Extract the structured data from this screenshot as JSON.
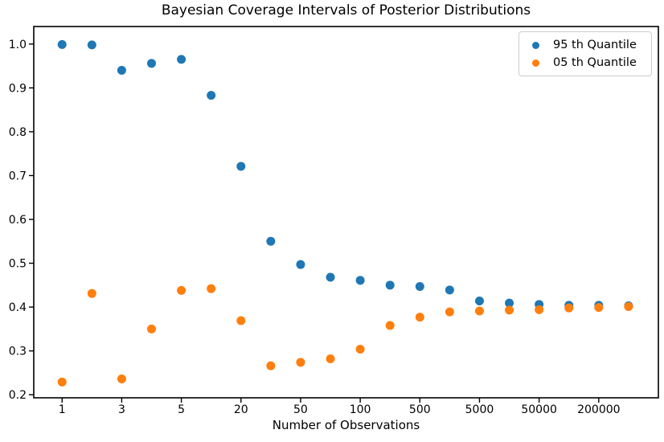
{
  "figure": {
    "background_color": "#ffffff",
    "axis_color": "#000000"
  },
  "chart_data": {
    "type": "scatter",
    "title": "Bayesian Coverage Intervals of Posterior Distributions",
    "xlabel": "Number of Observations",
    "ylabel": "",
    "grid": false,
    "legend_position": "upper right",
    "x_index": [
      0,
      1,
      2,
      3,
      4,
      5,
      6,
      7,
      8,
      9,
      10,
      11,
      12,
      13,
      14,
      15,
      16,
      17,
      18,
      19
    ],
    "x_tick_positions": [
      0,
      2,
      4,
      6,
      8,
      10,
      12,
      14,
      16,
      18
    ],
    "x_tick_labels": [
      "1",
      "3",
      "5",
      "20",
      "50",
      "100",
      "500",
      "5000",
      "50000",
      "200000"
    ],
    "y_ticks": [
      0.2,
      0.3,
      0.4,
      0.5,
      0.6,
      0.7,
      0.8,
      0.9,
      1.0
    ],
    "xlim": [
      -0.95,
      20.0
    ],
    "ylim": [
      0.193,
      1.04
    ],
    "marker_size_px": 11,
    "series": [
      {
        "name": "95 th Quantile",
        "color": "#1f77b4",
        "values": [
          0.999,
          0.998,
          0.94,
          0.956,
          0.965,
          0.883,
          0.721,
          0.55,
          0.497,
          0.468,
          0.461,
          0.45,
          0.447,
          0.439,
          0.414,
          0.409,
          0.406,
          0.404,
          0.404,
          0.403
        ]
      },
      {
        "name": "05 th Quantile",
        "color": "#ff7f0e",
        "values": [
          0.229,
          0.431,
          0.236,
          0.35,
          0.438,
          0.442,
          0.369,
          0.266,
          0.274,
          0.282,
          0.304,
          0.358,
          0.377,
          0.389,
          0.391,
          0.393,
          0.394,
          0.398,
          0.399,
          0.401
        ]
      }
    ]
  }
}
